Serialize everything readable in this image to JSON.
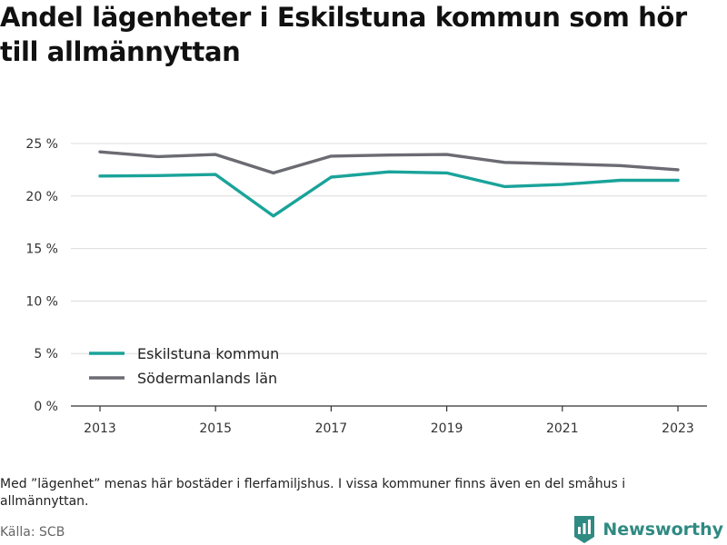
{
  "title": "Andel lägenheter i Eskilstuna kommun som hör till allmännyttan",
  "note": "Med ”lägenhet” menas här bostäder i flerfamiljshus. I vissa kommuner finns även en del småhus i allmännyttan.",
  "source": "Källa: SCB",
  "brand": {
    "name": "Newsworthy",
    "logo_icon": "bar-chart-badge-icon",
    "color": "#2f8a82"
  },
  "chart_data": {
    "type": "line",
    "x": [
      2013,
      2014,
      2015,
      2016,
      2017,
      2018,
      2019,
      2020,
      2021,
      2022,
      2023
    ],
    "series": [
      {
        "name": "Eskilstuna kommun",
        "color": "#1aa39a",
        "values": [
          21.9,
          21.95,
          22.05,
          18.1,
          21.8,
          22.3,
          22.2,
          20.9,
          21.1,
          21.5,
          21.5
        ]
      },
      {
        "name": "Södermanlands län",
        "color": "#6b6b73",
        "values": [
          24.2,
          23.75,
          23.95,
          22.2,
          23.8,
          23.9,
          23.95,
          23.2,
          23.05,
          22.9,
          22.5
        ]
      }
    ],
    "xticks": [
      2013,
      2015,
      2017,
      2019,
      2021,
      2023
    ],
    "xtick_labels": [
      "2013",
      "2015",
      "2017",
      "2019",
      "2021",
      "2023"
    ],
    "yticks": [
      0,
      5,
      10,
      15,
      20,
      25
    ],
    "ytick_labels": [
      "0 %",
      "5 %",
      "10 %",
      "15 %",
      "20 %",
      "25 %"
    ],
    "ylim": [
      0,
      25
    ],
    "xlim": [
      2013,
      2023
    ],
    "grid": "horizontal",
    "legend_position": "bottom-left",
    "xlabel": "",
    "ylabel": ""
  }
}
